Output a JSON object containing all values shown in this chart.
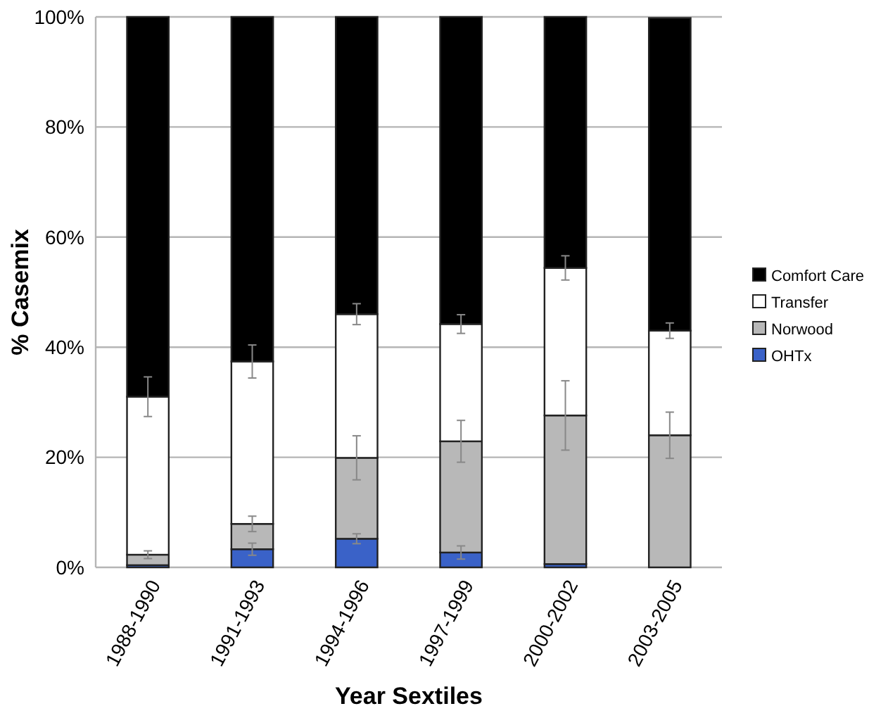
{
  "chart_data": {
    "type": "bar",
    "stacked": true,
    "xlabel": "Year Sextiles",
    "ylabel": "% Casemix",
    "categories": [
      "1988-1990",
      "1991-1993",
      "1994-1996",
      "1997-1999",
      "2000-2002",
      "2003-2005"
    ],
    "series": [
      {
        "name": "OHTx",
        "color": "#3a62c8",
        "values": [
          0.4,
          3.3,
          5.2,
          2.7,
          0.6,
          null
        ],
        "errors": [
          null,
          1.1,
          0.9,
          1.2,
          null,
          null
        ]
      },
      {
        "name": "Norwood",
        "color": "#b8b8b8",
        "values": [
          1.9,
          4.6,
          14.7,
          20.2,
          27,
          24
        ],
        "errors": [
          0.7,
          1.4,
          4,
          3.8,
          6.3,
          4.2
        ]
      },
      {
        "name": "Transfer",
        "color": "#ffffff",
        "values": [
          28.7,
          29.5,
          26.1,
          21.3,
          26.8,
          19
        ],
        "errors": [
          3.6,
          3,
          1.9,
          1.7,
          2.2,
          1.4
        ]
      },
      {
        "name": "Comfort Care",
        "color": "#000000",
        "values": [
          69,
          62.6,
          54,
          55.8,
          45.6,
          56.8
        ]
      }
    ],
    "ylim": [
      0,
      100
    ],
    "yticks": [
      {
        "value": 0,
        "label": "0%"
      },
      {
        "value": 20,
        "label": "20%"
      },
      {
        "value": 40,
        "label": "40%"
      },
      {
        "value": 60,
        "label": "60%"
      },
      {
        "value": 80,
        "label": "80%"
      },
      {
        "value": 100,
        "label": "100%"
      }
    ],
    "grid": "y",
    "legend": "right"
  }
}
